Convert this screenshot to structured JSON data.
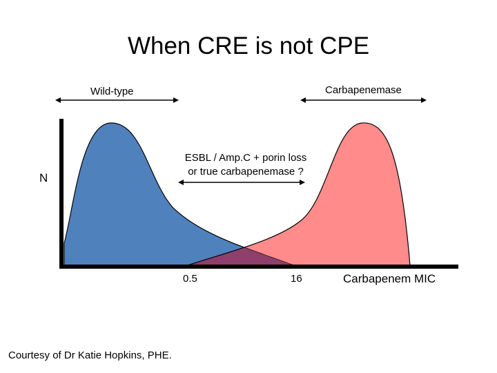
{
  "title": "When CRE is not CPE",
  "labels": {
    "wild_type": "Wild-type",
    "carbapenemase": "Carbapenemase",
    "middle_line1": "ESBL / Amp.C + porin loss",
    "middle_line2": "or true carbapenemase ?",
    "y_axis": "N",
    "x_axis": "Carbapenem MIC"
  },
  "ticks": [
    "0.5",
    "16"
  ],
  "credit": "Courtesy of Dr Katie Hopkins, PHE.",
  "colors": {
    "wild_type_fill": "#4f81bd",
    "carbapenemase_fill": "#ff8b8b",
    "overlap_fill": "#8e3f6b",
    "outline": "#000000"
  }
}
